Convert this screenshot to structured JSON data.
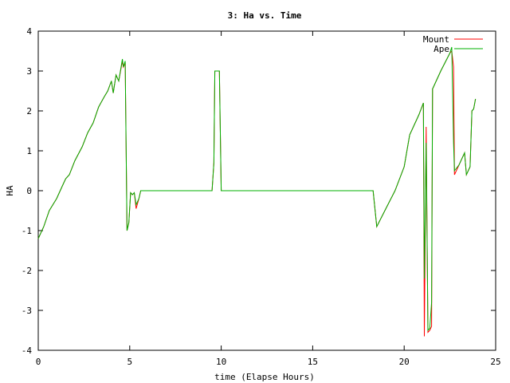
{
  "chart_data": {
    "type": "line",
    "title": "3: Ha vs. Time",
    "xlabel": "time (Elapse Hours)",
    "ylabel": "HA",
    "xlim": [
      0,
      25
    ],
    "ylim": [
      -4,
      4
    ],
    "xticks": [
      0,
      5,
      10,
      15,
      20,
      25
    ],
    "yticks": [
      -4,
      -3,
      -2,
      -1,
      0,
      1,
      2,
      3,
      4
    ],
    "grid": false,
    "legend_position": "top-right",
    "series": [
      {
        "name": "Mount",
        "color": "#ff0000",
        "points": [
          [
            0,
            -1.2
          ],
          [
            0.3,
            -0.9
          ],
          [
            0.6,
            -0.5
          ],
          [
            1.0,
            -0.2
          ],
          [
            1.3,
            0.1
          ],
          [
            1.5,
            0.3
          ],
          [
            1.7,
            0.4
          ],
          [
            2.0,
            0.75
          ],
          [
            2.4,
            1.1
          ],
          [
            2.7,
            1.45
          ],
          [
            3.0,
            1.7
          ],
          [
            3.3,
            2.1
          ],
          [
            3.6,
            2.35
          ],
          [
            3.8,
            2.5
          ],
          [
            4.0,
            2.75
          ],
          [
            4.1,
            2.45
          ],
          [
            4.25,
            2.9
          ],
          [
            4.4,
            2.75
          ],
          [
            4.6,
            3.25
          ],
          [
            4.65,
            3.1
          ],
          [
            4.75,
            3.2
          ],
          [
            4.8,
            1.2
          ],
          [
            4.85,
            -1.0
          ],
          [
            4.95,
            -0.8
          ],
          [
            5.05,
            -0.05
          ],
          [
            5.15,
            -0.1
          ],
          [
            5.25,
            -0.05
          ],
          [
            5.35,
            -0.45
          ],
          [
            5.5,
            -0.2
          ],
          [
            5.6,
            0.0
          ],
          [
            9.5,
            0.0
          ],
          [
            9.6,
            0.7
          ],
          [
            9.65,
            3.0
          ],
          [
            9.9,
            3.0
          ],
          [
            10.0,
            0.0
          ],
          [
            18.3,
            0.0
          ],
          [
            18.5,
            -0.9
          ],
          [
            19.0,
            -0.45
          ],
          [
            19.5,
            0.0
          ],
          [
            20.0,
            0.6
          ],
          [
            20.3,
            1.4
          ],
          [
            20.8,
            1.9
          ],
          [
            21.05,
            2.2
          ],
          [
            21.1,
            -3.65
          ],
          [
            21.2,
            1.6
          ],
          [
            21.3,
            -3.55
          ],
          [
            21.4,
            -3.5
          ],
          [
            21.5,
            -3.4
          ],
          [
            21.55,
            2.55
          ],
          [
            21.65,
            2.65
          ],
          [
            22.0,
            3.0
          ],
          [
            22.5,
            3.45
          ],
          [
            22.6,
            3.5
          ],
          [
            22.7,
            3.1
          ],
          [
            22.75,
            0.4
          ],
          [
            23.0,
            0.65
          ],
          [
            23.3,
            0.95
          ],
          [
            23.4,
            0.4
          ],
          [
            23.6,
            0.6
          ],
          [
            23.7,
            2.0
          ],
          [
            23.8,
            2.05
          ],
          [
            23.9,
            2.3
          ]
        ]
      },
      {
        "name": "Ape",
        "color": "#00b000",
        "points": [
          [
            0,
            -1.2
          ],
          [
            0.3,
            -0.9
          ],
          [
            0.6,
            -0.5
          ],
          [
            1.0,
            -0.2
          ],
          [
            1.3,
            0.1
          ],
          [
            1.5,
            0.3
          ],
          [
            1.7,
            0.4
          ],
          [
            2.0,
            0.75
          ],
          [
            2.4,
            1.1
          ],
          [
            2.7,
            1.45
          ],
          [
            3.0,
            1.7
          ],
          [
            3.3,
            2.1
          ],
          [
            3.6,
            2.35
          ],
          [
            3.8,
            2.5
          ],
          [
            4.0,
            2.75
          ],
          [
            4.1,
            2.45
          ],
          [
            4.25,
            2.9
          ],
          [
            4.4,
            2.75
          ],
          [
            4.6,
            3.3
          ],
          [
            4.65,
            3.1
          ],
          [
            4.75,
            3.25
          ],
          [
            4.8,
            1.2
          ],
          [
            4.85,
            -1.0
          ],
          [
            4.95,
            -0.8
          ],
          [
            5.05,
            -0.05
          ],
          [
            5.15,
            -0.1
          ],
          [
            5.25,
            -0.05
          ],
          [
            5.35,
            -0.35
          ],
          [
            5.5,
            -0.2
          ],
          [
            5.6,
            0.0
          ],
          [
            9.5,
            0.0
          ],
          [
            9.6,
            0.7
          ],
          [
            9.65,
            3.0
          ],
          [
            9.9,
            3.0
          ],
          [
            10.0,
            0.0
          ],
          [
            18.3,
            0.0
          ],
          [
            18.5,
            -0.9
          ],
          [
            19.0,
            -0.45
          ],
          [
            19.5,
            0.0
          ],
          [
            20.0,
            0.6
          ],
          [
            20.3,
            1.4
          ],
          [
            20.8,
            1.9
          ],
          [
            21.05,
            2.2
          ],
          [
            21.1,
            -2.2
          ],
          [
            21.2,
            1.2
          ],
          [
            21.3,
            -3.5
          ],
          [
            21.4,
            -3.45
          ],
          [
            21.5,
            -2.8
          ],
          [
            21.55,
            2.55
          ],
          [
            21.65,
            2.65
          ],
          [
            22.0,
            3.0
          ],
          [
            22.5,
            3.45
          ],
          [
            22.6,
            3.6
          ],
          [
            22.7,
            1.2
          ],
          [
            22.75,
            0.5
          ],
          [
            23.0,
            0.65
          ],
          [
            23.3,
            0.95
          ],
          [
            23.4,
            0.4
          ],
          [
            23.6,
            0.6
          ],
          [
            23.7,
            2.0
          ],
          [
            23.8,
            2.05
          ],
          [
            23.9,
            2.3
          ]
        ]
      }
    ]
  }
}
